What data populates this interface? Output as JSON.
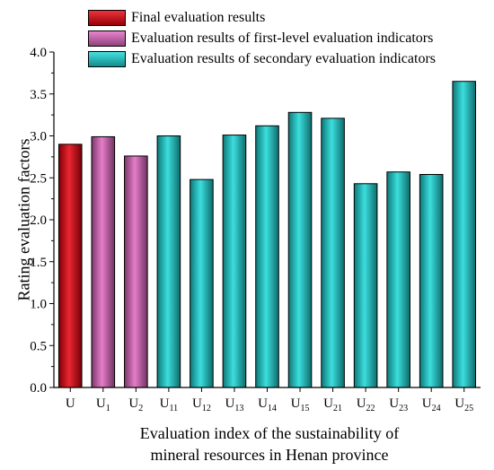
{
  "chart_data": {
    "type": "bar",
    "categories": [
      "U",
      "U1",
      "U2",
      "U11",
      "U12",
      "U13",
      "U14",
      "U15",
      "U21",
      "U22",
      "U23",
      "U24",
      "U25"
    ],
    "category_labels": [
      {
        "base": "U",
        "sub": ""
      },
      {
        "base": "U",
        "sub": "1"
      },
      {
        "base": "U",
        "sub": "2"
      },
      {
        "base": "U",
        "sub": "11"
      },
      {
        "base": "U",
        "sub": "12"
      },
      {
        "base": "U",
        "sub": "13"
      },
      {
        "base": "U",
        "sub": "14"
      },
      {
        "base": "U",
        "sub": "15"
      },
      {
        "base": "U",
        "sub": "21"
      },
      {
        "base": "U",
        "sub": "22"
      },
      {
        "base": "U",
        "sub": "23"
      },
      {
        "base": "U",
        "sub": "24"
      },
      {
        "base": "U",
        "sub": "25"
      }
    ],
    "values": [
      2.9,
      2.99,
      2.76,
      3.0,
      2.48,
      3.01,
      3.12,
      3.28,
      3.21,
      2.43,
      2.57,
      2.54,
      3.65
    ],
    "groups": [
      0,
      1,
      1,
      2,
      2,
      2,
      2,
      2,
      2,
      2,
      2,
      2,
      2
    ],
    "legend": [
      {
        "name": "Final evaluation results",
        "color": "#e8000b"
      },
      {
        "name": "Evaluation results of first-level evaluation indicators",
        "color": "#e066c0"
      },
      {
        "name": "Evaluation results of secondary evaluation indicators",
        "color": "#19d8d8"
      }
    ],
    "title": "",
    "xlabel_line1": "Evaluation index of the sustainability of",
    "xlabel_line2": "mineral resources in Henan province",
    "ylabel": "Rating evaluation factors",
    "ylim": [
      0,
      4.0
    ],
    "yticks": [
      "0.0",
      "0.5",
      "1.0",
      "1.5",
      "2.0",
      "2.5",
      "3.0",
      "3.5",
      "4.0"
    ],
    "legend_position": "top-left",
    "grid": false
  }
}
